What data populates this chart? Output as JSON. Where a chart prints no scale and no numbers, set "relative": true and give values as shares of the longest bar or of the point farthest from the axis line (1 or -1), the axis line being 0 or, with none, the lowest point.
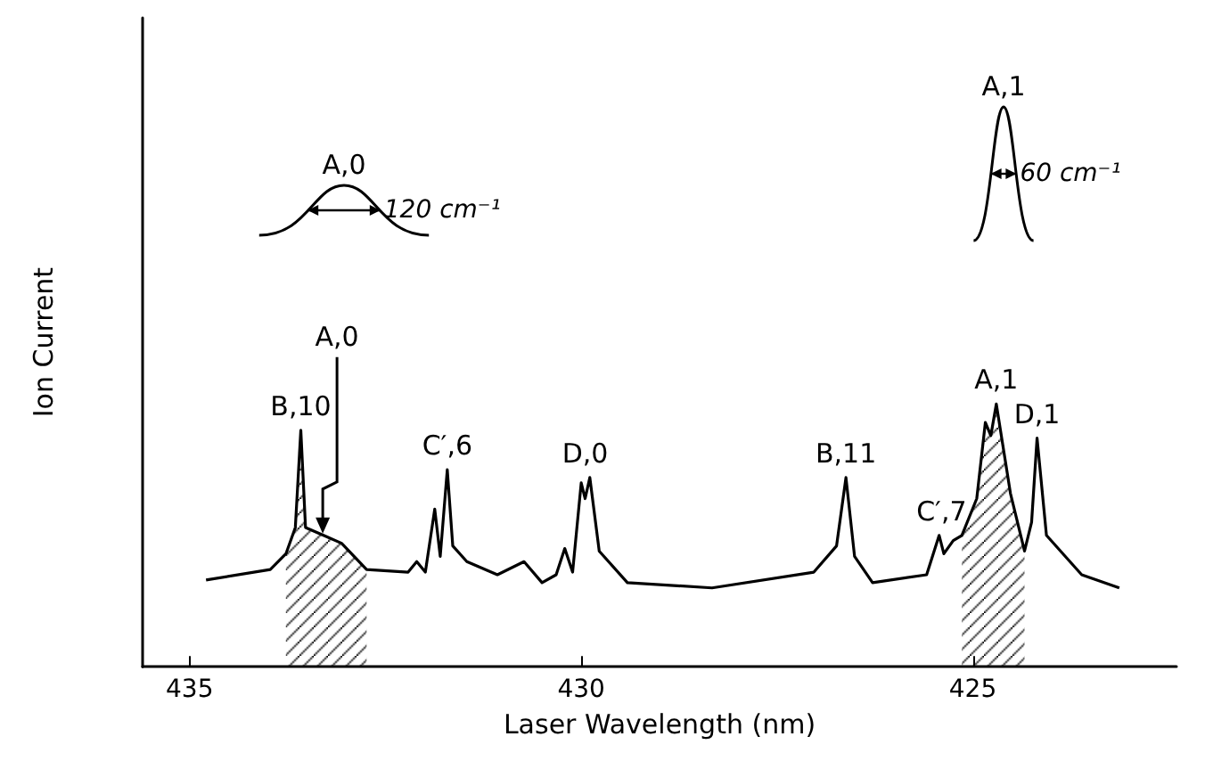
{
  "chart_data": {
    "type": "line",
    "relative": true,
    "xlabel": "Laser Wavelength (nm)",
    "ylabel": "Ion Current",
    "xlim": [
      435.6,
      422.4
    ],
    "xticks": [
      435,
      430,
      425
    ],
    "grid": false,
    "marker": "none",
    "line_style": "solid",
    "x": [
      434.79,
      433.97,
      433.77,
      433.65,
      433.58,
      433.52,
      433.29,
      433.06,
      432.74,
      432.21,
      432.1,
      431.99,
      431.87,
      431.8,
      431.71,
      431.64,
      431.46,
      431.07,
      430.73,
      430.5,
      430.32,
      430.21,
      430.11,
      430.0,
      429.95,
      429.89,
      429.77,
      429.41,
      428.33,
      427.03,
      426.74,
      426.62,
      426.51,
      426.28,
      425.59,
      425.43,
      425.37,
      425.25,
      425.14,
      424.95,
      424.84,
      424.77,
      424.7,
      424.52,
      424.34,
      424.25,
      424.18,
      424.06,
      423.61,
      423.13
    ],
    "series": [
      {
        "color": "#000000",
        "values": [
          0.33,
          0.37,
          0.43,
          0.53,
          0.9,
          0.53,
          0.5,
          0.47,
          0.37,
          0.36,
          0.4,
          0.36,
          0.6,
          0.42,
          0.75,
          0.46,
          0.4,
          0.35,
          0.4,
          0.32,
          0.35,
          0.45,
          0.36,
          0.7,
          0.64,
          0.72,
          0.44,
          0.32,
          0.3,
          0.36,
          0.46,
          0.72,
          0.42,
          0.32,
          0.35,
          0.5,
          0.43,
          0.48,
          0.5,
          0.64,
          0.93,
          0.88,
          1,
          0.66,
          0.44,
          0.55,
          0.87,
          0.5,
          0.35,
          0.3
        ]
      },
      {
        "type": "area",
        "color": "#000000",
        "x": [
          433.77,
          433.65,
          433.58,
          433.52,
          433.29,
          433.06,
          432.74
        ],
        "values": [
          0.43,
          0.53,
          0.9,
          0.53,
          0.5,
          0.47,
          0.37
        ]
      },
      {
        "type": "area",
        "color": "#000000",
        "x": [
          425.14,
          424.95,
          424.84,
          424.77,
          424.7,
          424.52,
          424.34
        ],
        "values": [
          0.5,
          0.64,
          0.93,
          0.88,
          1,
          0.66,
          0.44
        ]
      }
    ],
    "annotations": [
      {
        "text": "B,10",
        "x": 433.58,
        "y": 0.9
      },
      {
        "text": "A,0",
        "x": 433.3,
        "y": 0.5
      },
      {
        "text": "C′,6",
        "x": 431.71,
        "y": 0.75
      },
      {
        "text": "D,0",
        "x": 429.95,
        "y": 0.72
      },
      {
        "text": "B,11",
        "x": 426.62,
        "y": 0.72
      },
      {
        "text": "C′,7",
        "x": 425.4,
        "y": 0.5
      },
      {
        "text": "A,1",
        "x": 424.7,
        "y": 1
      },
      {
        "text": "D,1",
        "x": 424.18,
        "y": 0.87
      },
      "A,0",
      "120 cm⁻¹",
      "A,1",
      "60 cm⁻¹"
    ]
  }
}
